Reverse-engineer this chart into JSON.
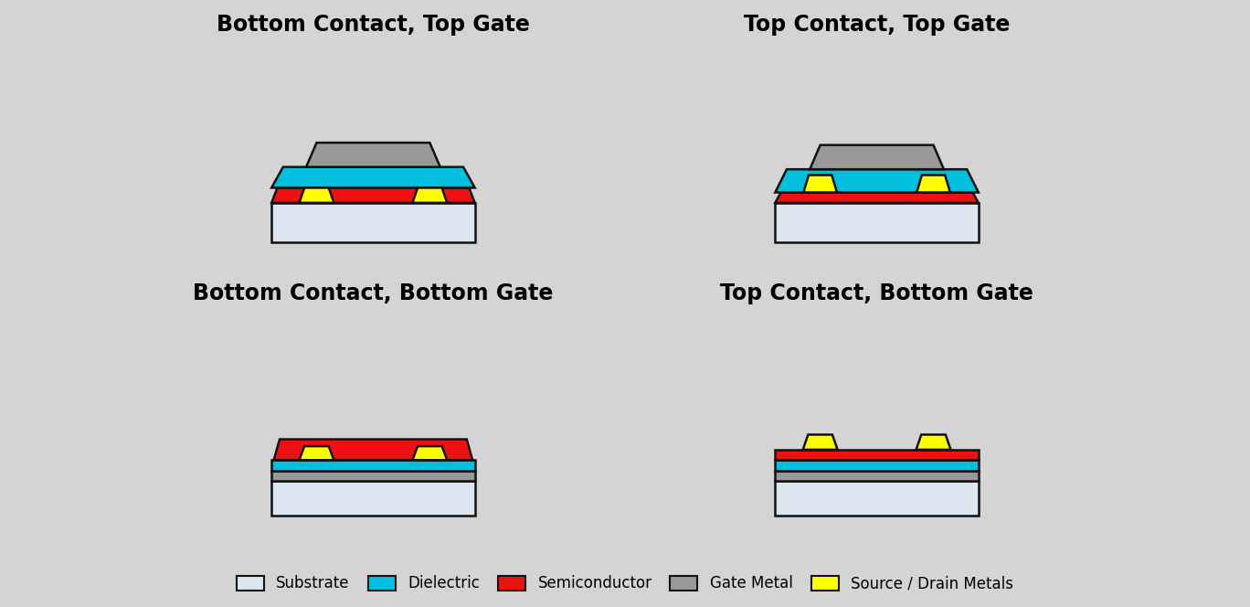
{
  "bg_color": "#d4d4d4",
  "colors": {
    "substrate": "#dce6f0",
    "dielectric": "#00bfdf",
    "semiconductor": "#ee1111",
    "gate_metal": "#999999",
    "source_drain": "#ffff00",
    "outline": "#111111"
  },
  "titles": [
    "Bottom Contact, Top Gate",
    "Top Contact, Top Gate",
    "Bottom Contact, Bottom Gate",
    "Top Contact, Bottom Gate"
  ],
  "legend": {
    "labels": [
      "Substrate",
      "Dielectric",
      "Semiconductor",
      "Gate Metal",
      "Source / Drain Metals"
    ],
    "colors": [
      "#dce6f0",
      "#00bfdf",
      "#ee1111",
      "#999999",
      "#ffff00"
    ]
  },
  "title_fontsize": 17,
  "legend_fontsize": 12
}
